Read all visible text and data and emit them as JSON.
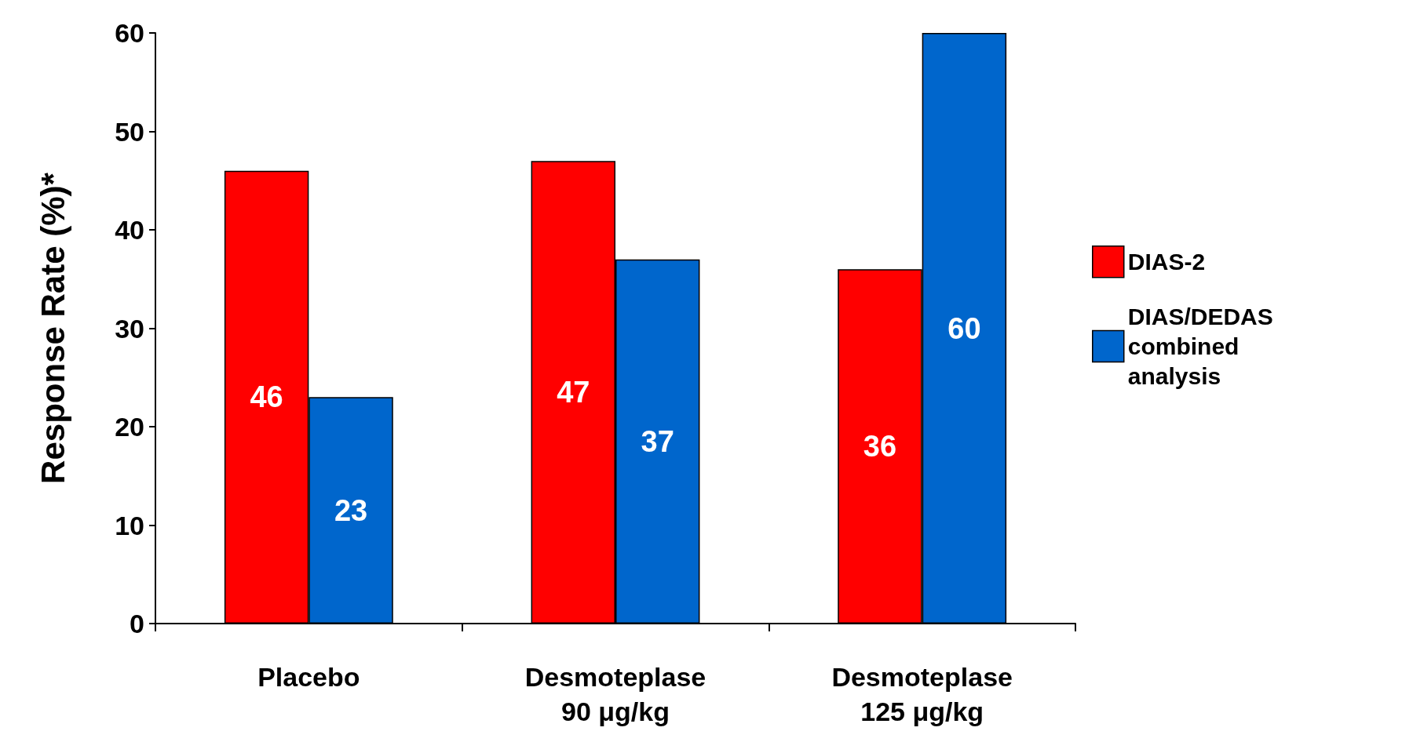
{
  "chart_data": {
    "type": "bar",
    "ylabel": "Response Rate (%)*",
    "categories": [
      "Placebo",
      "Desmoteplase\n90 μg/kg",
      "Desmoteplase\n125 μg/kg"
    ],
    "series": [
      {
        "name": "DIAS-2",
        "color": "#ff0000",
        "values": [
          46,
          47,
          36
        ]
      },
      {
        "name": "DIAS/DEDAS combined analysis",
        "color": "#0066cc",
        "values": [
          23,
          37,
          60
        ]
      }
    ],
    "ylim": [
      0,
      60
    ],
    "yticks": [
      0,
      10,
      20,
      30,
      40,
      50,
      60
    ],
    "grid": false,
    "legend": "right",
    "data_labels": true
  }
}
